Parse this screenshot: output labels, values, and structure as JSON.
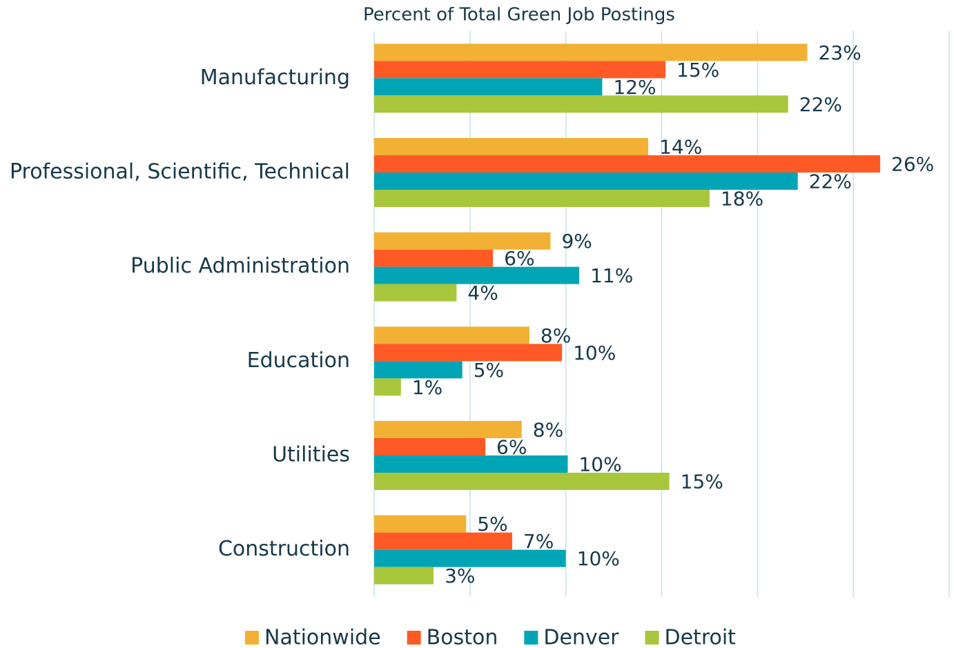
{
  "chart_data": {
    "type": "hbar",
    "title": "Percent of Total Green Job Postings",
    "categories": [
      "Manufacturing",
      "Professional, Scientific, Technical",
      "Public Administration",
      "Education",
      "Utilities",
      "Construction"
    ],
    "series": [
      {
        "name": "Nationwide",
        "color": "#f2b134",
        "values": [
          22.6,
          14.3,
          9.2,
          8.1,
          7.7,
          4.8
        ],
        "value_labels": [
          "23%",
          "14%",
          "9%",
          "8%",
          "8%",
          "5%"
        ]
      },
      {
        "name": "Boston",
        "color": "#ff5a26",
        "values": [
          15.2,
          26.4,
          6.2,
          9.8,
          5.8,
          7.2
        ],
        "value_labels": [
          "15%",
          "26%",
          "6%",
          "10%",
          "6%",
          "7%"
        ]
      },
      {
        "name": "Denver",
        "color": "#00a5b5",
        "values": [
          11.9,
          22.1,
          10.7,
          4.6,
          10.1,
          10.0
        ],
        "value_labels": [
          "12%",
          "22%",
          "11%",
          "5%",
          "10%",
          "10%"
        ]
      },
      {
        "name": "Detroit",
        "color": "#a8c63c",
        "values": [
          21.6,
          17.5,
          4.3,
          1.4,
          15.4,
          3.1
        ],
        "value_labels": [
          "22%",
          "18%",
          "4%",
          "1%",
          "15%",
          "3%"
        ]
      }
    ],
    "xlim": [
      0,
      30
    ],
    "xticks": [
      0,
      5,
      10,
      15,
      20,
      25,
      30
    ],
    "grid": true,
    "legend": "bottom"
  }
}
